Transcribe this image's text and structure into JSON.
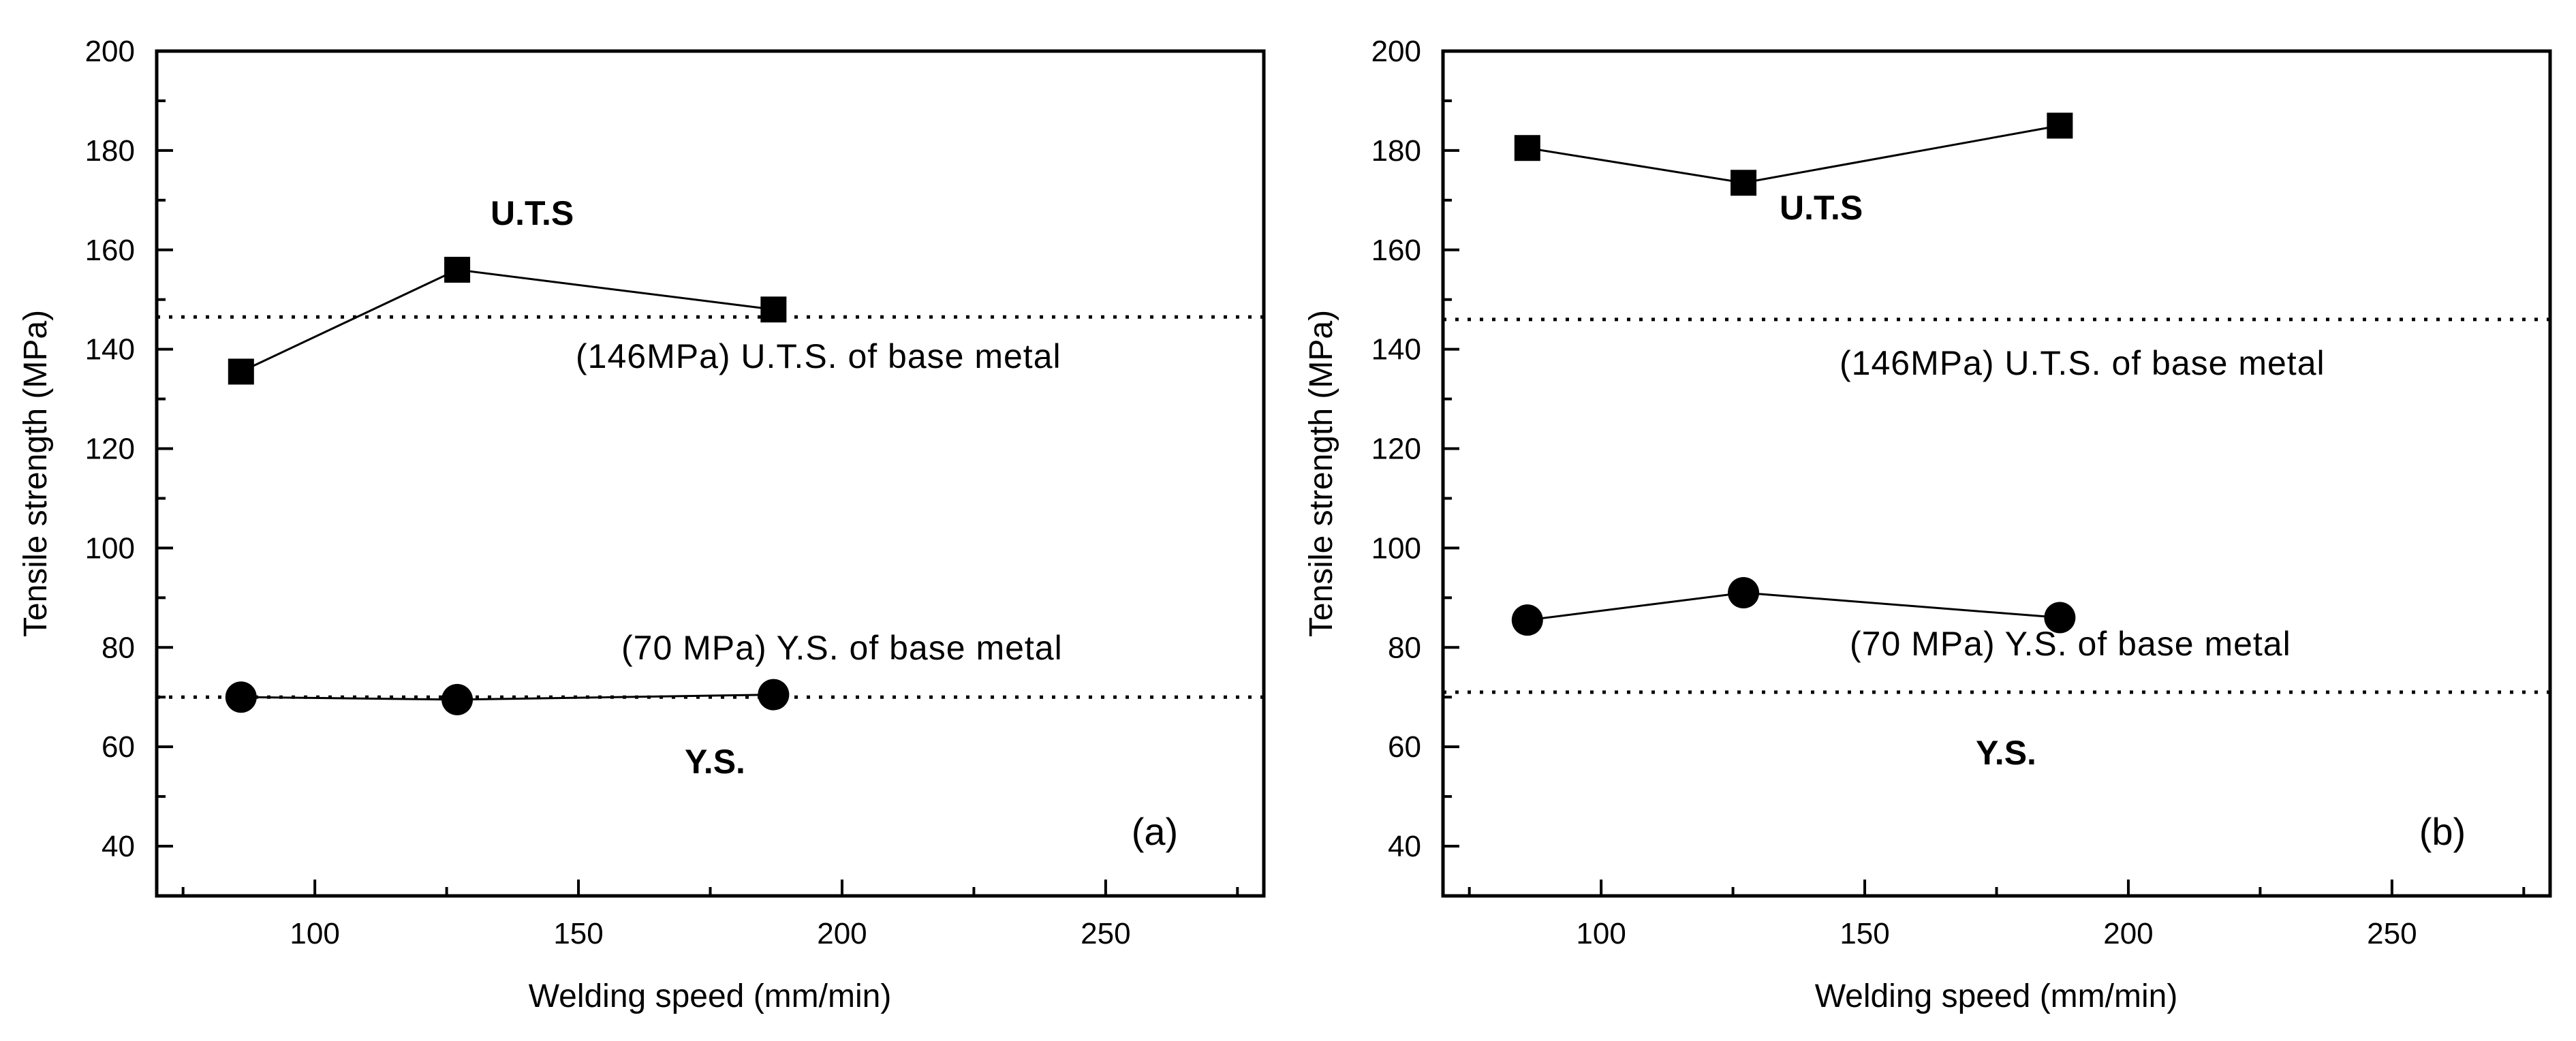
{
  "chart_data": [
    {
      "type": "scatter",
      "panel_label": "(a)",
      "xlabel": "Welding speed (mm/min)",
      "ylabel": "Tensile strength (MPa)",
      "xlim": [
        70,
        280
      ],
      "ylim": [
        30,
        200
      ],
      "x_ticks": [
        100,
        150,
        200,
        250
      ],
      "x_ticks_minor": [
        75,
        125,
        175,
        225,
        275
      ],
      "y_ticks": [
        40,
        60,
        80,
        100,
        120,
        140,
        160,
        180,
        200
      ],
      "y_ticks_minor": [
        50,
        70,
        90,
        110,
        130,
        150,
        170,
        190
      ],
      "series": [
        {
          "name": "U.T.S",
          "marker": "square",
          "x": [
            86,
            127,
            187
          ],
          "values": [
            135.5,
            156,
            148
          ]
        },
        {
          "name": "Y.S.",
          "marker": "circle",
          "x": [
            86,
            127,
            187
          ],
          "values": [
            70,
            69.5,
            70.5
          ]
        }
      ],
      "reference_lines": [
        {
          "y": 146.5,
          "label": "(146MPa) U.T.S. of base metal"
        },
        {
          "y": 70,
          "label": "(70 MPa) Y.S. of base metal"
        }
      ]
    },
    {
      "type": "scatter",
      "panel_label": "(b)",
      "xlabel": "Welding speed (mm/min)",
      "ylabel": "Tensile strength (MPa)",
      "xlim": [
        70,
        280
      ],
      "ylim": [
        30,
        200
      ],
      "x_ticks": [
        100,
        150,
        200,
        250
      ],
      "x_ticks_minor": [
        75,
        125,
        175,
        225,
        275
      ],
      "y_ticks": [
        40,
        60,
        80,
        100,
        120,
        140,
        160,
        180,
        200
      ],
      "y_ticks_minor": [
        50,
        70,
        90,
        110,
        130,
        150,
        170,
        190
      ],
      "series": [
        {
          "name": "U.T.S",
          "marker": "square",
          "x": [
            86,
            127,
            187
          ],
          "values": [
            180.5,
            173.5,
            185
          ]
        },
        {
          "name": "Y.S.",
          "marker": "circle",
          "x": [
            86,
            127,
            187
          ],
          "values": [
            85.5,
            91,
            86
          ]
        }
      ],
      "reference_lines": [
        {
          "y": 146,
          "label": "(146MPa) U.T.S. of base metal"
        },
        {
          "y": 71,
          "label": "(70 MPa) Y.S. of base metal"
        }
      ]
    }
  ]
}
